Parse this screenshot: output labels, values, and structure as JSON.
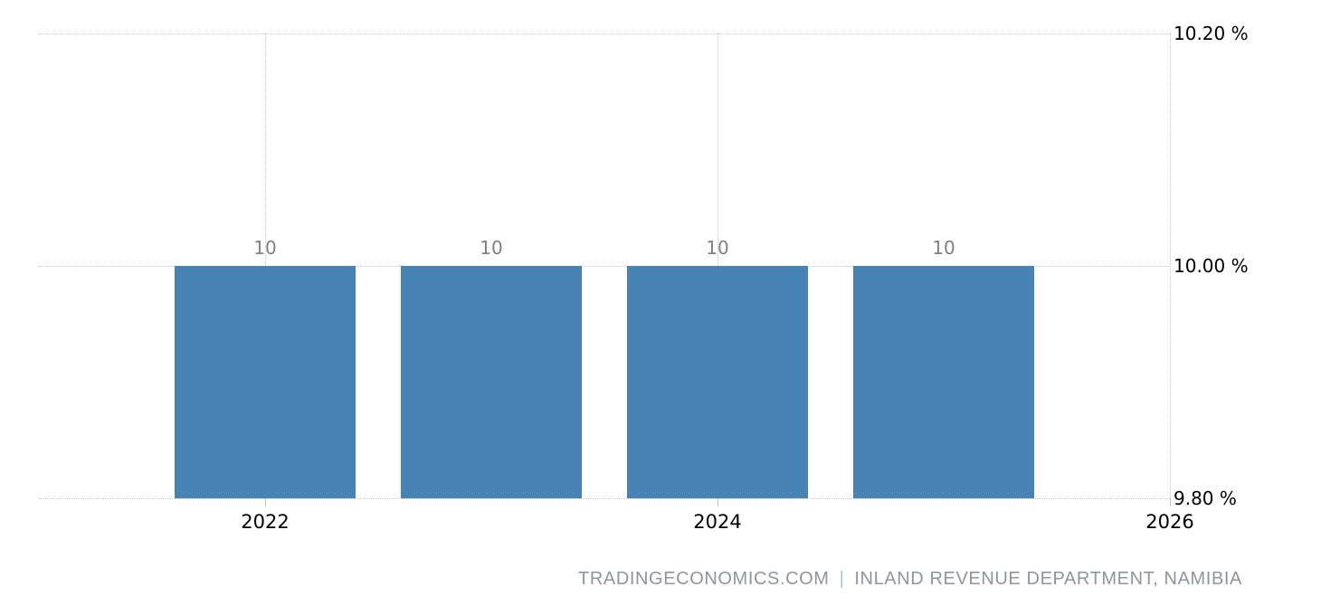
{
  "chart_data": {
    "type": "bar",
    "title": "",
    "xlabel": "",
    "ylabel": "",
    "unit": "%",
    "categories": [
      2022,
      2023,
      2024,
      2025
    ],
    "values": [
      10,
      10,
      10,
      10
    ],
    "bar_labels": [
      "10",
      "10",
      "10",
      "10"
    ],
    "ylim": [
      9.8,
      10.2
    ],
    "x_range": [
      2021,
      2026
    ],
    "yticks": [
      {
        "value": 10.2,
        "label": "10.20 %"
      },
      {
        "value": 10.0,
        "label": "10.00 %"
      },
      {
        "value": 9.8,
        "label": "9.80 %"
      }
    ],
    "xticks": [
      {
        "value": 2022,
        "label": "2022"
      },
      {
        "value": 2024,
        "label": "2024"
      },
      {
        "value": 2026,
        "label": "2026"
      }
    ],
    "grid": "dotted",
    "legend": "none",
    "bar_width_fraction": 0.8
  },
  "footer": {
    "source": "TRADINGECONOMICS.COM",
    "separator": "|",
    "provider": "INLAND REVENUE DEPARTMENT, NAMIBIA"
  },
  "colors": {
    "background": "#ffffff",
    "grid": "#c9c9c9",
    "axis_text": "#000000",
    "bar": "#4783b4",
    "bar_label": "#808080",
    "footer_text": "#8f959a",
    "footer_separator": "#a9c6dc"
  }
}
